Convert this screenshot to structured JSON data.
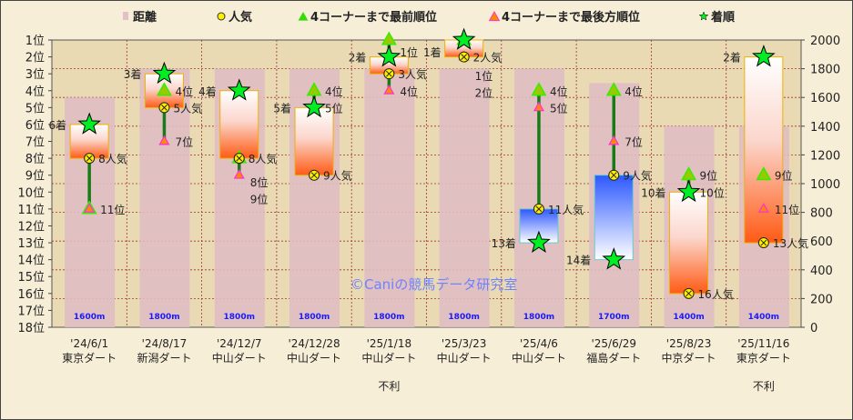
{
  "chart_data": {
    "type": "bar",
    "legend": {
      "position": "top",
      "items": [
        {
          "key": "distance",
          "label": "距離",
          "color": "#e3c0c6"
        },
        {
          "key": "popularity",
          "label": "人気",
          "color": "#ffee00"
        },
        {
          "key": "best",
          "label": "4コーナーまで最前順位",
          "color": "#33dd00"
        },
        {
          "key": "worst",
          "label": "4コーナーまで最後方順位",
          "color": "#ff8800"
        },
        {
          "key": "finish",
          "label": "着順",
          "color": "#00ee22"
        }
      ]
    },
    "left_axis": {
      "ticks": [
        "1位",
        "2位",
        "3位",
        "4位",
        "5位",
        "6位",
        "7位",
        "8位",
        "9位",
        "10位",
        "11位",
        "12位",
        "13位",
        "14位",
        "15位",
        "16位",
        "17位",
        "18位"
      ],
      "range": [
        1,
        18
      ]
    },
    "right_axis": {
      "ticks": [
        0,
        200,
        400,
        600,
        800,
        1000,
        1200,
        1400,
        1600,
        1800,
        2000
      ],
      "range": [
        0,
        2000
      ]
    },
    "grid": true,
    "categories": [
      {
        "date": "'24/6/1",
        "course": "東京ダート",
        "note": ""
      },
      {
        "date": "'24/8/17",
        "course": "新潟ダート",
        "note": ""
      },
      {
        "date": "'24/12/7",
        "course": "中山ダート",
        "note": ""
      },
      {
        "date": "'24/12/28",
        "course": "中山ダート",
        "note": ""
      },
      {
        "date": "'25/1/18",
        "course": "中山ダート",
        "note": "不利"
      },
      {
        "date": "'25/3/23",
        "course": "中山ダート",
        "note": ""
      },
      {
        "date": "'25/4/6",
        "course": "中山ダート",
        "note": ""
      },
      {
        "date": "'25/6/29",
        "course": "福島ダート",
        "note": ""
      },
      {
        "date": "'25/8/23",
        "course": "中京ダート",
        "note": ""
      },
      {
        "date": "'25/11/16",
        "course": "東京ダート",
        "note": "不利"
      }
    ],
    "series": {
      "distance": [
        1600,
        1800,
        1800,
        1800,
        1800,
        1800,
        1800,
        1700,
        1400,
        1400
      ],
      "distance_labels": [
        "1600m",
        "1800m",
        "1800m",
        "1800m",
        "1800m",
        "1800m",
        "1800m",
        "1700m",
        "1400m",
        "1400m"
      ],
      "finish": [
        6,
        3,
        4,
        5,
        2,
        1,
        13,
        14,
        10,
        2
      ],
      "popularity": [
        8,
        5,
        8,
        9,
        3,
        2,
        11,
        9,
        16,
        13
      ],
      "best": [
        11,
        4,
        8,
        4,
        1,
        1,
        4,
        4,
        9,
        9
      ],
      "worst": [
        11,
        7,
        9,
        5,
        4,
        2,
        5,
        7,
        10,
        11
      ]
    },
    "suffix": {
      "finish": "着",
      "popularity": "人気",
      "rank": "位"
    },
    "watermark": "©Caniの競馬データ研究室"
  }
}
